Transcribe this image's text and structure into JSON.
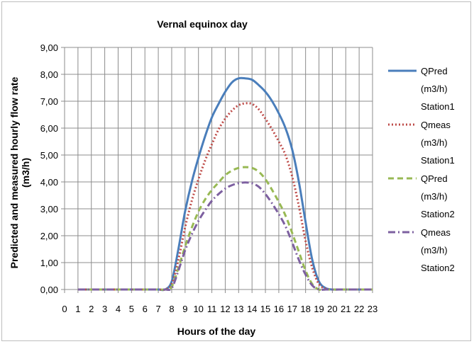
{
  "chart_data": {
    "type": "line",
    "title": "Vernal equinox day",
    "xlabel": "Hours of the day",
    "ylabel_line1": "Predicted and measured hourly flow rate",
    "ylabel_line2": "(m3/h)",
    "xlim": [
      0,
      23
    ],
    "ylim": [
      0,
      9
    ],
    "x_ticks": [
      "0",
      "1",
      "2",
      "3",
      "4",
      "5",
      "6",
      "7",
      "8",
      "9",
      "10",
      "11",
      "12",
      "13",
      "14",
      "15",
      "16",
      "17",
      "18",
      "19",
      "20",
      "21",
      "22",
      "23"
    ],
    "y_ticks": [
      "0,00",
      "1,00",
      "2,00",
      "3,00",
      "4,00",
      "5,00",
      "6,00",
      "7,00",
      "8,00",
      "9,00"
    ],
    "grid": true,
    "legend_position": "right",
    "x": [
      1,
      2,
      3,
      4,
      5,
      6,
      7,
      7.5,
      8,
      8.5,
      9,
      9.5,
      10,
      10.5,
      11,
      11.5,
      12,
      12.5,
      13,
      13.5,
      14,
      14.5,
      15,
      15.5,
      16,
      16.5,
      17,
      17.5,
      18,
      18.5,
      19,
      19.5,
      20,
      20.5,
      21,
      22,
      23
    ],
    "series": [
      {
        "name": "QPred (m3/h) Station1",
        "legend_lines": [
          "QPred",
          "(m3/h)",
          "Station1"
        ],
        "color": "#4a7ebb",
        "style": "solid",
        "values": [
          0,
          0,
          0,
          0,
          0,
          0,
          0,
          0,
          0.3,
          1.5,
          2.9,
          4.0,
          4.9,
          5.7,
          6.4,
          6.9,
          7.35,
          7.7,
          7.85,
          7.85,
          7.8,
          7.6,
          7.35,
          7.0,
          6.55,
          6.0,
          5.2,
          4.0,
          2.5,
          1.1,
          0.3,
          0.05,
          0,
          0,
          0,
          0,
          0
        ]
      },
      {
        "name": "Qmeas (m3/h) Station1",
        "legend_lines": [
          "Qmeas",
          "(m3/h)",
          "Station1"
        ],
        "color": "#be4b48",
        "style": "dotted",
        "values": [
          0,
          0,
          0,
          0,
          0,
          0,
          0,
          0,
          0.2,
          1.1,
          2.3,
          3.3,
          4.1,
          4.8,
          5.4,
          5.95,
          6.35,
          6.65,
          6.85,
          6.92,
          6.9,
          6.7,
          6.35,
          5.95,
          5.5,
          5.0,
          4.2,
          3.1,
          1.8,
          0.8,
          0.2,
          0.03,
          0,
          0,
          0,
          0,
          0
        ]
      },
      {
        "name": "QPred (m3/h) Station2",
        "legend_lines": [
          "QPred",
          "(m3/h)",
          "Station2"
        ],
        "color": "#98b954",
        "style": "dashed",
        "values": [
          0,
          0,
          0,
          0,
          0,
          0,
          0,
          0,
          0.1,
          0.8,
          1.6,
          2.3,
          2.9,
          3.35,
          3.7,
          3.98,
          4.25,
          4.42,
          4.52,
          4.55,
          4.52,
          4.38,
          4.1,
          3.7,
          3.25,
          2.75,
          2.1,
          1.4,
          0.7,
          0.2,
          0,
          0,
          0,
          0,
          0,
          0,
          0
        ]
      },
      {
        "name": "Qmeas (m3/h) Station2",
        "legend_lines": [
          "Qmeas",
          "(m3/h)",
          "Station2"
        ],
        "color": "#7d60a0",
        "style": "dashdot",
        "values": [
          0,
          0,
          0,
          0,
          0,
          0,
          0,
          0,
          0.05,
          0.7,
          1.45,
          2.05,
          2.55,
          2.95,
          3.3,
          3.55,
          3.75,
          3.88,
          3.95,
          3.98,
          3.95,
          3.82,
          3.55,
          3.2,
          2.8,
          2.35,
          1.75,
          1.1,
          0.55,
          0.15,
          0,
          0,
          0,
          0,
          0,
          0,
          0
        ]
      }
    ]
  }
}
